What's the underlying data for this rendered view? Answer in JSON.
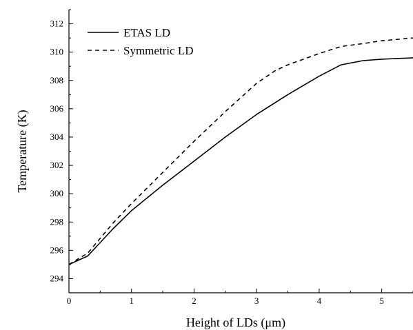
{
  "chart_data": {
    "type": "line",
    "title": "",
    "xlabel": "Height of  LDs (μm)",
    "ylabel": "Temperature (K)",
    "xlim": [
      0,
      5.5
    ],
    "ylim": [
      293,
      313
    ],
    "xticks": [
      0,
      1,
      2,
      3,
      4,
      5
    ],
    "yticks": [
      294,
      296,
      298,
      300,
      302,
      304,
      306,
      308,
      310,
      312
    ],
    "grid": false,
    "legend_position": "top-left",
    "series": [
      {
        "name": "ETAS LD",
        "style": "solid",
        "color": "#000000",
        "x": [
          0,
          0.3,
          0.7,
          1.0,
          1.5,
          2.0,
          2.5,
          3.0,
          3.5,
          4.0,
          4.35,
          4.7,
          5.0,
          5.5
        ],
        "y": [
          295.0,
          295.6,
          297.5,
          298.8,
          300.6,
          302.3,
          304.0,
          305.6,
          307.0,
          308.3,
          309.1,
          309.4,
          309.5,
          309.6
        ]
      },
      {
        "name": "Symmetric LD",
        "style": "dashed",
        "color": "#000000",
        "x": [
          0,
          0.3,
          0.7,
          1.0,
          1.5,
          2.0,
          2.5,
          3.0,
          3.3,
          3.5,
          4.0,
          4.35,
          4.7,
          5.0,
          5.5
        ],
        "y": [
          295.0,
          295.8,
          297.9,
          299.3,
          301.5,
          303.7,
          305.8,
          307.8,
          308.7,
          309.1,
          309.9,
          310.4,
          310.6,
          310.8,
          311.0
        ]
      }
    ]
  }
}
